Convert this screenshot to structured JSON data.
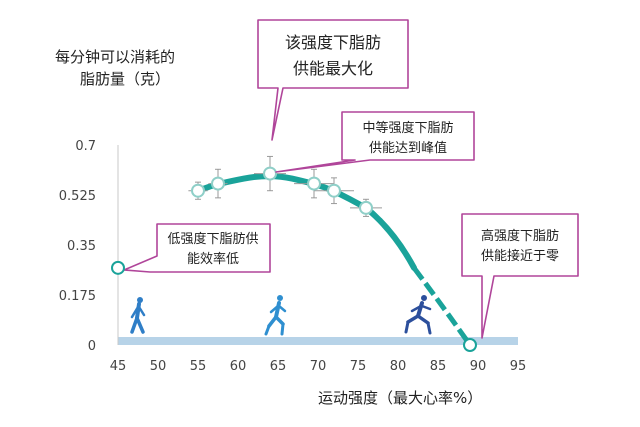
{
  "chart_data": {
    "type": "line",
    "ylabel_lines": [
      "每分钟可以消耗的",
      "脂肪量（克）"
    ],
    "xlabel": "运动强度（最大心率%）",
    "xlim": [
      45,
      95
    ],
    "ylim": [
      0,
      0.7
    ],
    "xticks": [
      "45",
      "50",
      "55",
      "60",
      "65",
      "70",
      "75",
      "80",
      "85",
      "90",
      "95"
    ],
    "yticks": [
      "0",
      "0.175",
      "0.35",
      "0.525",
      "0.7"
    ],
    "series": [
      {
        "x": [
          55,
          57.5,
          64,
          69.5,
          72,
          76
        ],
        "y": [
          0.54,
          0.565,
          0.6,
          0.565,
          0.54,
          0.48
        ],
        "yerr": [
          0.03,
          0.05,
          0.06,
          0.05,
          0.045,
          0.03
        ],
        "xerr": [
          1.2,
          1.2,
          2.0,
          2.5,
          2.5,
          2.0
        ]
      }
    ],
    "extra_points": [
      {
        "x": 45,
        "y": 0.27
      },
      {
        "x": 89,
        "y": 0
      }
    ],
    "color": "#1aa39a",
    "annotations": [
      {
        "lines": [
          "该强度下脂肪",
          "供能最大化"
        ]
      },
      {
        "lines": [
          "中等强度下脂肪",
          "供能达到峰值"
        ]
      },
      {
        "lines": [
          "低强度下脂肪供",
          "能效率低"
        ]
      },
      {
        "lines": [
          "高强度下脂肪",
          "供能接近于零"
        ]
      }
    ],
    "icons": [
      "walking-person-icon",
      "running-person-icon",
      "sprinting-person-icon"
    ],
    "grid": false
  }
}
